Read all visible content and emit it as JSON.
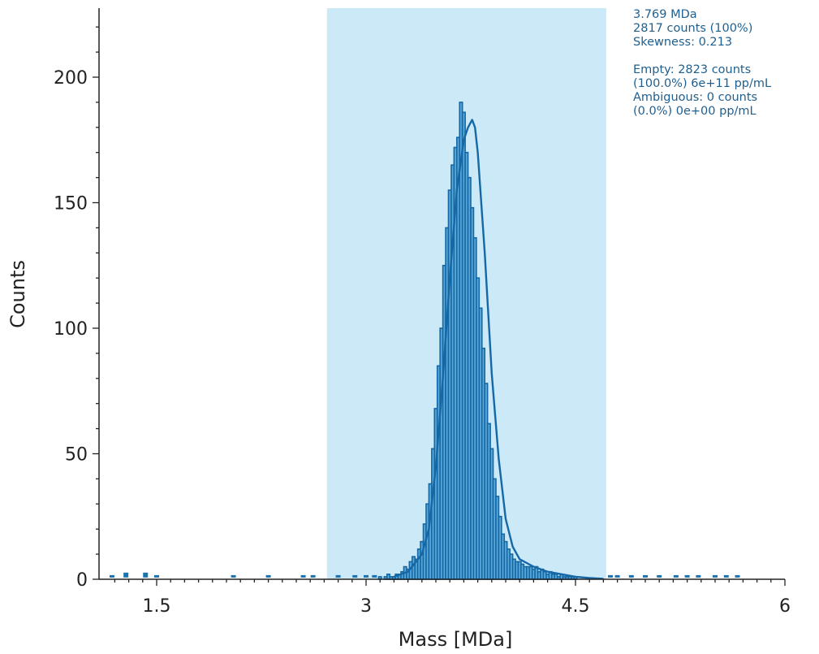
{
  "chart_data": {
    "type": "bar",
    "xlabel": "Mass [MDa]",
    "ylabel": "Counts",
    "xlim": [
      1.1,
      6.0
    ],
    "ylim": [
      0,
      225
    ],
    "xticks": [
      1.5,
      3,
      4.5,
      6
    ],
    "xtick_labels": [
      "1.5",
      "3",
      "4.5",
      "6"
    ],
    "yticks": [
      0,
      50,
      100,
      150,
      200
    ],
    "ytick_labels": [
      "0",
      "50",
      "100",
      "150",
      "200"
    ],
    "selection_range": [
      2.72,
      4.72
    ],
    "peak_center": 3.769,
    "histogram": {
      "bin_width": 0.02,
      "x": [
        3.1,
        3.12,
        3.14,
        3.16,
        3.18,
        3.2,
        3.22,
        3.24,
        3.26,
        3.28,
        3.3,
        3.32,
        3.34,
        3.36,
        3.38,
        3.4,
        3.42,
        3.44,
        3.46,
        3.48,
        3.5,
        3.52,
        3.54,
        3.56,
        3.58,
        3.6,
        3.62,
        3.64,
        3.66,
        3.68,
        3.7,
        3.72,
        3.74,
        3.76,
        3.78,
        3.8,
        3.82,
        3.84,
        3.86,
        3.88,
        3.9,
        3.92,
        3.94,
        3.96,
        3.98,
        4.0,
        4.02,
        4.04,
        4.06,
        4.08,
        4.1,
        4.12,
        4.14,
        4.16,
        4.18,
        4.2,
        4.22,
        4.24,
        4.26,
        4.28,
        4.3,
        4.32,
        4.34,
        4.36,
        4.38,
        4.4,
        4.42,
        4.44,
        4.46,
        4.48,
        4.5
      ],
      "counts": [
        1,
        0,
        1,
        2,
        1,
        1,
        2,
        2,
        3,
        5,
        4,
        7,
        9,
        8,
        12,
        15,
        22,
        30,
        38,
        52,
        68,
        85,
        100,
        125,
        140,
        155,
        165,
        172,
        176,
        190,
        186,
        170,
        160,
        148,
        136,
        120,
        108,
        92,
        78,
        62,
        52,
        40,
        33,
        25,
        18,
        15,
        12,
        10,
        8,
        7,
        7,
        6,
        5,
        5,
        5,
        4,
        5,
        3,
        4,
        3,
        2,
        3,
        2,
        2,
        1,
        2,
        1,
        1,
        1,
        1,
        1
      ]
    },
    "outside_scatter": {
      "x": [
        1.18,
        1.28,
        1.42,
        1.5,
        2.05,
        2.3,
        2.55,
        2.62,
        2.8,
        2.92,
        3.0,
        3.06,
        4.75,
        4.8,
        4.9,
        5.0,
        5.1,
        5.22,
        5.3,
        5.38,
        5.5,
        5.58,
        5.66
      ],
      "counts": [
        1,
        2,
        2,
        1,
        1,
        1,
        1,
        1,
        1,
        1,
        1,
        1,
        1,
        1,
        1,
        1,
        1,
        1,
        1,
        1,
        1,
        1,
        1
      ]
    },
    "fit_curve": {
      "x": [
        3.2,
        3.3,
        3.4,
        3.45,
        3.5,
        3.55,
        3.6,
        3.65,
        3.7,
        3.73,
        3.76,
        3.78,
        3.8,
        3.85,
        3.9,
        3.95,
        4.0,
        4.05,
        4.1,
        4.2,
        4.3,
        4.4,
        4.5,
        4.6,
        4.7
      ],
      "counts": [
        1,
        3,
        10,
        20,
        45,
        80,
        120,
        155,
        175,
        180,
        183,
        180,
        170,
        130,
        82,
        48,
        24,
        13,
        8,
        5,
        3,
        2,
        1,
        0.5,
        0.2
      ]
    },
    "colors": {
      "selection": "#cce9f8",
      "bars": "#5aa8d7",
      "bar_edge": "#1568a5",
      "fit": "#1568a5",
      "scatter": "#1873b0"
    }
  },
  "annotation": {
    "line1": "3.769 MDa",
    "line2": "2817 counts (100%)",
    "line3": "Skewness: 0.213",
    "line4": "Empty: 2823 counts",
    "line5": "(100.0%) 6e+11 pp/mL",
    "line6": "Ambiguous: 0 counts",
    "line7": "(0.0%) 0e+00 pp/mL"
  }
}
